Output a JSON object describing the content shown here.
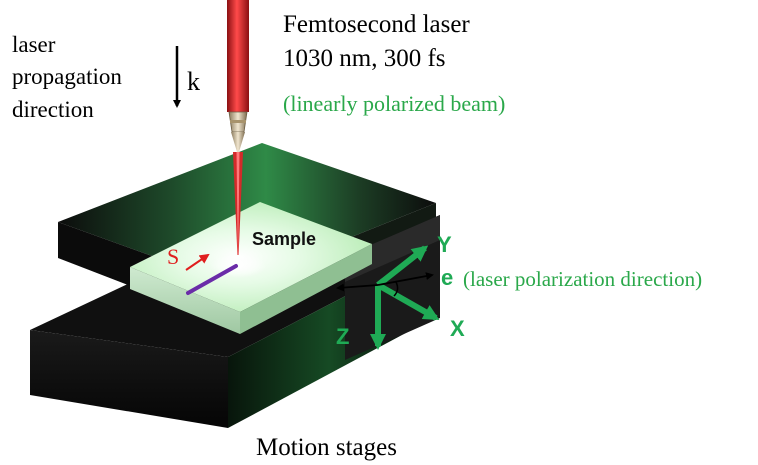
{
  "laser": {
    "title": "Femtosecond laser",
    "params": "1030 nm, 300 fs",
    "polarization_note": "(linearly polarized beam)"
  },
  "propagation": {
    "line1": "laser",
    "line2": "propagation",
    "line3": "direction",
    "symbol": "k"
  },
  "sample_label": "Sample",
  "scan_label": "S",
  "axes": {
    "x": "X",
    "y": "Y",
    "z": "Z"
  },
  "polarization": {
    "symbol": "e",
    "description": "(laser polarization direction)"
  },
  "stages_label": "Motion stages",
  "colors": {
    "laser_red": "#d42a2a",
    "axis_green": "#1faa55",
    "annotation_green": "#2aa84a",
    "stage_black": "#141414",
    "glow_green": "#3cff7a",
    "scan_purple": "#6a2ca8"
  }
}
